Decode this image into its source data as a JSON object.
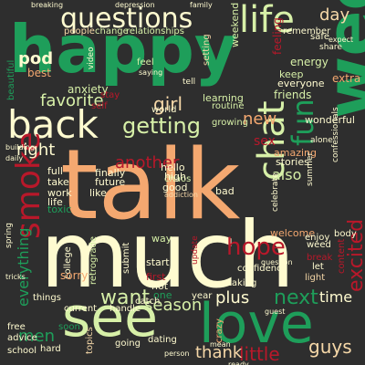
{
  "title": "",
  "colors": {
    "background": "#2e2e2e",
    "green": "#1e9e5a",
    "pale_green": "#d7f0a8",
    "cream": "#fffbd0",
    "orange": "#f4a870",
    "tan": "#f6d8a8",
    "red": "#b8182a"
  },
  "words": [
    {
      "text": "happy",
      "color": "#1e9e5a"
    },
    {
      "text": "questions",
      "color": "#fffbd0"
    },
    {
      "text": "life",
      "color": "#d7f0a8"
    },
    {
      "text": "week",
      "color": "#1e9e5a"
    },
    {
      "text": "talk",
      "color": "#f4a870"
    },
    {
      "text": "much",
      "color": "#fffbd0"
    },
    {
      "text": "back",
      "color": "#fffbd0"
    },
    {
      "text": "see",
      "color": "#d7f0a8"
    },
    {
      "text": "love",
      "color": "#1e9e5a"
    },
    {
      "text": "smoke",
      "color": "#b8182a"
    },
    {
      "text": "chat",
      "color": "#d7f0a8"
    },
    {
      "text": "fun",
      "color": "#1e9e5a"
    },
    {
      "text": "day",
      "color": "#f6d8a8"
    },
    {
      "text": "want",
      "color": "#d7f0a8"
    },
    {
      "text": "next",
      "color": "#1e9e5a"
    },
    {
      "text": "hope",
      "color": "#b8182a"
    },
    {
      "text": "getting",
      "color": "#d7f0a8"
    },
    {
      "text": "favorite",
      "color": "#d7f0a8"
    },
    {
      "text": "excited",
      "color": "#b8182a"
    },
    {
      "text": "season",
      "color": "#d7f0a8"
    },
    {
      "text": "plus",
      "color": "#fffbd0"
    },
    {
      "text": "time",
      "color": "#fffbd0"
    },
    {
      "text": "guys",
      "color": "#f6d8a8"
    },
    {
      "text": "little",
      "color": "#b8182a"
    },
    {
      "text": "thank",
      "color": "#f6d8a8"
    },
    {
      "text": "men",
      "color": "#1e9e5a"
    },
    {
      "text": "everything",
      "color": "#1e9e5a"
    },
    {
      "text": "another",
      "color": "#b8182a"
    },
    {
      "text": "girl",
      "color": "#f6d8a8"
    },
    {
      "text": "new",
      "color": "#f4a870"
    },
    {
      "text": "right",
      "color": "#fffbd0"
    },
    {
      "text": "also",
      "color": "#d7f0a8"
    },
    {
      "text": "pod",
      "color": "#fffbd0"
    },
    {
      "text": "beautiful",
      "color": "#1e9e5a"
    },
    {
      "text": "best",
      "color": "#f4a870"
    },
    {
      "text": "anxiety",
      "color": "#d7f0a8"
    },
    {
      "text": "people",
      "color": "#f6d8a8"
    },
    {
      "text": "change",
      "color": "#d7f0a8"
    },
    {
      "text": "relationships",
      "color": "#d7f0a8"
    },
    {
      "text": "feeling",
      "color": "#b8182a"
    },
    {
      "text": "energy",
      "color": "#d7f0a8"
    },
    {
      "text": "keep",
      "color": "#d7f0a8"
    },
    {
      "text": "everyone",
      "color": "#fffbd0"
    },
    {
      "text": "extra",
      "color": "#f4a870"
    },
    {
      "text": "friends",
      "color": "#d7f0a8"
    },
    {
      "text": "learning",
      "color": "#d7f0a8"
    },
    {
      "text": "wonderful",
      "color": "#fffbd0"
    },
    {
      "text": "amazing",
      "color": "#f4a870"
    },
    {
      "text": "stories",
      "color": "#fffbd0"
    },
    {
      "text": "sex",
      "color": "#b8182a"
    },
    {
      "text": "world",
      "color": "#fffbd0"
    },
    {
      "text": "routine",
      "color": "#d7f0a8"
    },
    {
      "text": "growing",
      "color": "#d7f0a8"
    },
    {
      "text": "weekend",
      "color": "#d7f0a8"
    },
    {
      "text": "setting",
      "color": "#f6d8a8"
    },
    {
      "text": "chaos",
      "color": "#d7f0a8"
    },
    {
      "text": "hello",
      "color": "#fffbd0"
    },
    {
      "text": "high",
      "color": "#fffbd0"
    },
    {
      "text": "finally",
      "color": "#fffbd0"
    },
    {
      "text": "future",
      "color": "#fffbd0"
    },
    {
      "text": "full",
      "color": "#fffbd0"
    },
    {
      "text": "take",
      "color": "#fffbd0"
    },
    {
      "text": "work",
      "color": "#fffbd0"
    },
    {
      "text": "life",
      "color": "#fffbd0"
    },
    {
      "text": "toxic",
      "color": "#1e9e5a"
    },
    {
      "text": "like",
      "color": "#fffbd0"
    },
    {
      "text": "good",
      "color": "#fffbd0"
    },
    {
      "text": "addiction",
      "color": "#f6d8a8"
    },
    {
      "text": "bad",
      "color": "#fffbd0"
    },
    {
      "text": "way",
      "color": "#d7f0a8"
    },
    {
      "text": "start",
      "color": "#fffbd0"
    },
    {
      "text": "first",
      "color": "#b8182a"
    },
    {
      "text": "hot",
      "color": "#fffbd0"
    },
    {
      "text": "one",
      "color": "#1e9e5a"
    },
    {
      "text": "welcome",
      "color": "#f4a870"
    },
    {
      "text": "enjoy",
      "color": "#fffbd0"
    },
    {
      "text": "weed",
      "color": "#fffbd0"
    },
    {
      "text": "break",
      "color": "#b8182a"
    },
    {
      "text": "let",
      "color": "#fffbd0"
    },
    {
      "text": "light",
      "color": "#f6d8a8"
    },
    {
      "text": "confidence",
      "color": "#fffbd0"
    },
    {
      "text": "taking",
      "color": "#fffbd0"
    },
    {
      "text": "year",
      "color": "#fffbd0"
    },
    {
      "text": "catch",
      "color": "#fffbd0"
    },
    {
      "text": "college",
      "color": "#fffbd0"
    },
    {
      "text": "sorry",
      "color": "#f4a870"
    },
    {
      "text": "things",
      "color": "#fffbd0"
    },
    {
      "text": "current",
      "color": "#fffbd0"
    },
    {
      "text": "handle",
      "color": "#fffbd0"
    },
    {
      "text": "submit",
      "color": "#fffbd0"
    },
    {
      "text": "retrograde",
      "color": "#d7f0a8"
    },
    {
      "text": "remember",
      "color": "#fffbd0"
    },
    {
      "text": "safe",
      "color": "#fffbd0"
    },
    {
      "text": "free",
      "color": "#fffbd0"
    },
    {
      "text": "advice",
      "color": "#fffbd0"
    },
    {
      "text": "school",
      "color": "#fffbd0"
    },
    {
      "text": "hard",
      "color": "#fffbd0"
    },
    {
      "text": "soon",
      "color": "#1e9e5a"
    },
    {
      "text": "topics",
      "color": "#f6d8a8"
    },
    {
      "text": "going",
      "color": "#fffbd0"
    },
    {
      "text": "dating",
      "color": "#fffbd0"
    },
    {
      "text": "crazy",
      "color": "#f4a870"
    },
    {
      "text": "content",
      "color": "#b8182a"
    },
    {
      "text": "body",
      "color": "#fffbd0"
    },
    {
      "text": "celebrate",
      "color": "#fffbd0"
    },
    {
      "text": "confessionals",
      "color": "#fffbd0"
    },
    {
      "text": "alone",
      "color": "#fffbd0"
    },
    {
      "text": "stay",
      "color": "#b8182a"
    },
    {
      "text": "self",
      "color": "#b8182a"
    },
    {
      "text": "spring",
      "color": "#fffbd0"
    },
    {
      "text": "summer",
      "color": "#fffbd0"
    },
    {
      "text": "feel",
      "color": "#d7f0a8"
    },
    {
      "text": "tell",
      "color": "#fffbd0"
    },
    {
      "text": "share",
      "color": "#fffbd0"
    },
    {
      "text": "question",
      "color": "#fffbd0"
    },
    {
      "text": "update",
      "color": "#b8182a"
    },
    {
      "text": "breaking",
      "color": "#fffbd0"
    },
    {
      "text": "depression",
      "color": "#fffbd0"
    },
    {
      "text": "family",
      "color": "#fffbd0"
    },
    {
      "text": "video",
      "color": "#fffbd0"
    },
    {
      "text": "saying",
      "color": "#fffbd0"
    },
    {
      "text": "tricks",
      "color": "#fffbd0"
    },
    {
      "text": "daily",
      "color": "#fffbd0"
    },
    {
      "text": "building",
      "color": "#fffbd0"
    },
    {
      "text": "mean",
      "color": "#fffbd0"
    },
    {
      "text": "ready",
      "color": "#fffbd0"
    },
    {
      "text": "expect",
      "color": "#fffbd0"
    },
    {
      "text": "person",
      "color": "#fffbd0"
    },
    {
      "text": "guest",
      "color": "#fffbd0"
    }
  ]
}
